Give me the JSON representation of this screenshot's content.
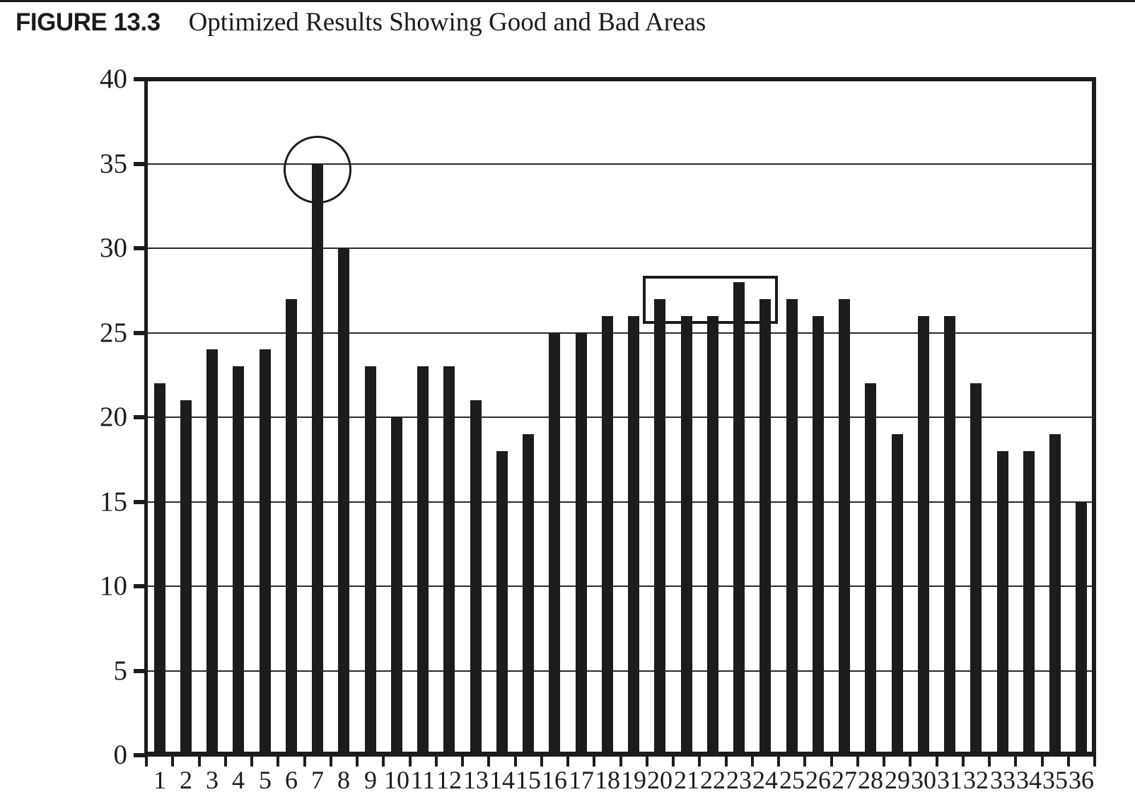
{
  "figure": {
    "label": "FIGURE 13.3",
    "title": "Optimized Results Showing Good and Bad Areas"
  },
  "chart_data": {
    "type": "bar",
    "title": "Optimized Results Showing Good and Bad Areas",
    "categories": [
      "1",
      "2",
      "3",
      "4",
      "5",
      "6",
      "7",
      "8",
      "9",
      "10",
      "11",
      "12",
      "13",
      "14",
      "15",
      "16",
      "17",
      "18",
      "19",
      "20",
      "21",
      "22",
      "23",
      "24",
      "25",
      "26",
      "27",
      "28",
      "29",
      "30",
      "31",
      "32",
      "33",
      "34",
      "35",
      "36"
    ],
    "values": [
      22,
      21,
      24,
      23,
      24,
      27,
      35,
      30,
      23,
      20,
      23,
      23,
      21,
      18,
      19,
      25,
      25,
      26,
      26,
      27,
      26,
      26,
      28,
      27,
      27,
      26,
      27,
      22,
      19,
      26,
      26,
      22,
      18,
      18,
      19,
      15
    ],
    "xlabel": "",
    "ylabel": "",
    "ylim": [
      0,
      40
    ],
    "yticks": [
      0,
      5,
      10,
      15,
      20,
      25,
      30,
      35,
      40
    ],
    "grid": true,
    "legend": false,
    "bar_color": "#1d1b1c",
    "line_color": "#1d1b1c",
    "annotations": [
      {
        "type": "circle",
        "category": "7",
        "highlighted_value": 35
      },
      {
        "type": "rect",
        "from_category": "20",
        "to_category": "24"
      }
    ]
  }
}
